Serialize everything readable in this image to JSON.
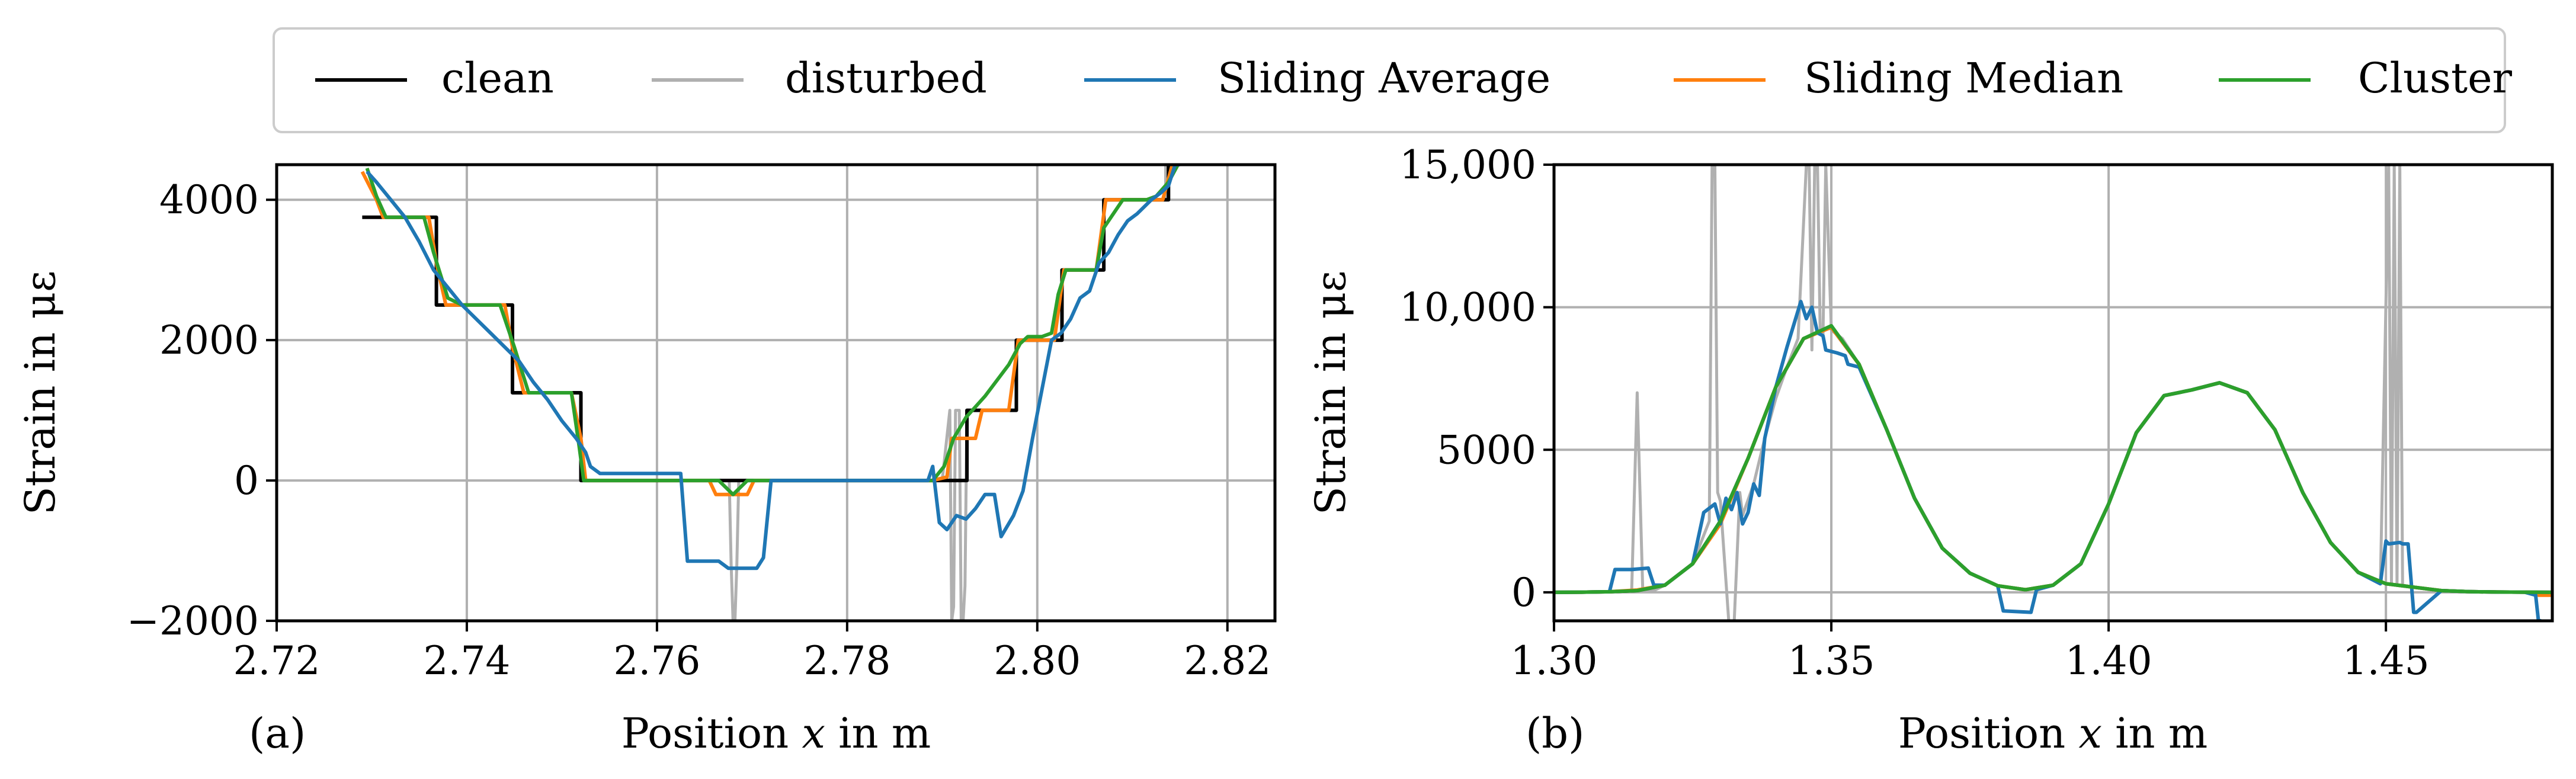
{
  "colors": {
    "clean": "#000000",
    "disturbed": "#b0b0b0",
    "sliding_average": "#1f77b4",
    "sliding_median": "#ff7f0e",
    "cluster": "#2ca02c",
    "grid": "#b0b0b0"
  },
  "chart_data": [
    {
      "type": "line",
      "panel_label": "(a)",
      "xlabel_pre": "Position ",
      "xlabel_var": "x",
      "xlabel_post": " in m",
      "ylabel": "Strain in με",
      "xlim": [
        2.72,
        2.825
      ],
      "ylim": [
        -2000,
        4500
      ],
      "xticks": [
        2.72,
        2.74,
        2.76,
        2.78,
        2.8,
        2.82
      ],
      "xtick_labels": [
        "2.72",
        "2.74",
        "2.76",
        "2.78",
        "2.80",
        "2.82"
      ],
      "yticks": [
        -2000,
        0,
        2000,
        4000
      ],
      "ytick_labels": [
        "−2000",
        "0",
        "2000",
        "4000"
      ],
      "grid": true,
      "series": [
        {
          "name": "disturbed",
          "x": [
            2.729,
            2.7368,
            2.7368,
            2.7448,
            2.7448,
            2.752,
            2.752,
            2.7676,
            2.7678,
            2.768,
            2.7682,
            2.7684,
            2.7686,
            2.79,
            2.7908,
            2.791,
            2.7912,
            2.7914,
            2.7918,
            2.792,
            2.7922,
            2.7924,
            2.7926,
            2.7926,
            2.7978,
            2.7978,
            2.8026,
            2.8026,
            2.807,
            2.807,
            2.8112,
            2.8112,
            2.8135,
            2.8135,
            2.8155
          ],
          "y": [
            3750,
            3750,
            2500,
            2500,
            1250,
            1250,
            0,
            0,
            -1200,
            -2000,
            -2000,
            -1200,
            0,
            0,
            1000,
            -2000,
            -1800,
            1000,
            1000,
            -2000,
            -2000,
            -1500,
            1000,
            1000,
            1000,
            2000,
            2000,
            3000,
            3000,
            4000,
            4000,
            4000,
            4000,
            4500,
            4500
          ]
        },
        {
          "name": "clean",
          "x": [
            2.729,
            2.7368,
            2.7368,
            2.7448,
            2.7448,
            2.752,
            2.752,
            2.789,
            2.789,
            2.7926,
            2.7926,
            2.7978,
            2.7978,
            2.8026,
            2.8026,
            2.807,
            2.807,
            2.8138,
            2.8138,
            2.815
          ],
          "y": [
            3750,
            3750,
            2500,
            2500,
            1250,
            1250,
            0,
            0,
            0,
            0,
            1000,
            1000,
            2000,
            2000,
            3000,
            3000,
            4000,
            4000,
            4500,
            4500
          ]
        },
        {
          "name": "Sliding Median",
          "x": [
            2.729,
            2.7305,
            2.7312,
            2.736,
            2.7368,
            2.7378,
            2.744,
            2.7448,
            2.746,
            2.751,
            2.752,
            2.7525,
            2.7655,
            2.7662,
            2.7695,
            2.7702,
            2.789,
            2.7905,
            2.791,
            2.7935,
            2.7942,
            2.797,
            2.798,
            2.8018,
            2.8028,
            2.8062,
            2.8072,
            2.8132,
            2.8142,
            2.815
          ],
          "y": [
            4400,
            4000,
            3750,
            3750,
            3100,
            2500,
            2500,
            1900,
            1250,
            1250,
            600,
            0,
            0,
            -200,
            -200,
            0,
            0,
            50,
            600,
            600,
            1000,
            1000,
            2000,
            2000,
            3000,
            3000,
            4000,
            4000,
            4500,
            4500
          ]
        },
        {
          "name": "Cluster",
          "x": [
            2.7295,
            2.7305,
            2.7315,
            2.7355,
            2.7365,
            2.738,
            2.7395,
            2.7435,
            2.745,
            2.7465,
            2.751,
            2.7518,
            2.7523,
            2.7665,
            2.768,
            2.7695,
            2.789,
            2.7902,
            2.7912,
            2.7925,
            2.7945,
            2.797,
            2.7982,
            2.799,
            2.8005,
            2.8015,
            2.8022,
            2.803,
            2.805,
            2.8062,
            2.807,
            2.809,
            2.8115,
            2.8125,
            2.8138,
            2.8148,
            2.815
          ],
          "y": [
            4450,
            4050,
            3750,
            3750,
            3250,
            2600,
            2500,
            2500,
            1900,
            1250,
            1250,
            500,
            0,
            0,
            -200,
            0,
            0,
            200,
            600,
            900,
            1200,
            1650,
            1950,
            2050,
            2050,
            2100,
            2650,
            3000,
            3000,
            3000,
            3600,
            4000,
            4000,
            4050,
            4250,
            4500,
            4500
          ]
        },
        {
          "name": "Sliding Average",
          "x": [
            2.7295,
            2.7305,
            2.732,
            2.7335,
            2.735,
            2.7365,
            2.738,
            2.7395,
            2.741,
            2.7425,
            2.744,
            2.7455,
            2.747,
            2.7485,
            2.75,
            2.7515,
            2.7525,
            2.753,
            2.754,
            2.7625,
            2.7632,
            2.7665,
            2.7675,
            2.7685,
            2.7705,
            2.7712,
            2.772,
            2.7885,
            2.789,
            2.7897,
            2.7905,
            2.7915,
            2.7925,
            2.7935,
            2.7945,
            2.7955,
            2.7962,
            2.7975,
            2.7985,
            2.7995,
            2.8005,
            2.8015,
            2.8025,
            2.8035,
            2.8045,
            2.8055,
            2.8065,
            2.8075,
            2.8085,
            2.8095,
            2.8105,
            2.812,
            2.813,
            2.8138,
            2.8145,
            2.815
          ],
          "y": [
            4400,
            4250,
            4000,
            3750,
            3400,
            3000,
            2750,
            2500,
            2300,
            2100,
            1900,
            1700,
            1400,
            1150,
            850,
            600,
            400,
            200,
            100,
            100,
            -1150,
            -1150,
            -1250,
            -1250,
            -1250,
            -1100,
            0,
            0,
            200,
            -600,
            -700,
            -500,
            -550,
            -400,
            -200,
            -200,
            -800,
            -500,
            -150,
            600,
            1300,
            2000,
            2100,
            2300,
            2600,
            2700,
            3100,
            3250,
            3500,
            3700,
            3800,
            4000,
            4100,
            4200,
            4500,
            4500
          ]
        }
      ]
    },
    {
      "type": "line",
      "panel_label": "(b)",
      "xlabel_pre": "Position ",
      "xlabel_var": "x",
      "xlabel_post": " in m",
      "ylabel": "Strain in με",
      "xlim": [
        1.3,
        1.48
      ],
      "ylim": [
        -1000,
        15000
      ],
      "xticks": [
        1.3,
        1.35,
        1.4,
        1.45
      ],
      "xtick_labels": [
        "1.30",
        "1.35",
        "1.40",
        "1.45"
      ],
      "yticks": [
        0,
        5000,
        10000,
        15000
      ],
      "ytick_labels": [
        "0",
        "5000",
        "10,000",
        "15,000"
      ],
      "grid": true,
      "series": [
        {
          "name": "disturbed",
          "x": [
            1.3,
            1.312,
            1.314,
            1.315,
            1.316,
            1.318,
            1.32,
            1.325,
            1.328,
            1.3285,
            1.329,
            1.3295,
            1.33,
            1.3315,
            1.3325,
            1.3335,
            1.334,
            1.336,
            1.338,
            1.34,
            1.342,
            1.344,
            1.3455,
            1.346,
            1.3465,
            1.347,
            1.3475,
            1.348,
            1.3485,
            1.349,
            1.35,
            1.352,
            1.355,
            1.36,
            1.365,
            1.37,
            1.375,
            1.38,
            1.385,
            1.39,
            1.395,
            1.4,
            1.405,
            1.41,
            1.415,
            1.42,
            1.425,
            1.43,
            1.435,
            1.44,
            1.445,
            1.449,
            1.4505,
            1.451,
            1.4515,
            1.452,
            1.4525,
            1.453,
            1.455,
            1.46,
            1.465,
            1.47,
            1.475,
            1.48
          ],
          "y": [
            0,
            20,
            60,
            7000,
            60,
            60,
            250,
            1000,
            2500,
            15000,
            15000,
            3500,
            3200,
            -1000,
            -1000,
            3500,
            2700,
            3800,
            5400,
            6800,
            7900,
            8900,
            15000,
            15000,
            8500,
            15000,
            15000,
            9100,
            9000,
            15000,
            9200,
            8900,
            8000,
            5700,
            3300,
            1550,
            670,
            230,
            90,
            250,
            1000,
            3100,
            5600,
            6900,
            7100,
            7350,
            7000,
            5700,
            3500,
            1750,
            700,
            300,
            15000,
            300,
            15000,
            300,
            15000,
            250,
            180,
            60,
            25,
            10,
            5,
            0
          ]
        },
        {
          "name": "clean",
          "x": [
            1.3,
            1.305,
            1.31,
            1.315,
            1.32,
            1.325,
            1.33,
            1.335,
            1.34,
            1.345,
            1.35,
            1.355,
            1.36,
            1.365,
            1.37,
            1.375,
            1.38,
            1.385,
            1.39,
            1.395,
            1.4,
            1.405,
            1.41,
            1.415,
            1.42,
            1.425,
            1.43,
            1.435,
            1.44,
            1.445,
            1.45,
            1.455,
            1.46,
            1.465,
            1.47,
            1.475,
            1.48
          ],
          "y": [
            0,
            5,
            20,
            60,
            250,
            1000,
            2500,
            4700,
            7200,
            8900,
            9300,
            8000,
            5700,
            3300,
            1550,
            670,
            230,
            90,
            250,
            1000,
            3100,
            5600,
            6900,
            7100,
            7350,
            7000,
            5700,
            3500,
            1750,
            700,
            300,
            180,
            60,
            25,
            10,
            5,
            0
          ]
        },
        {
          "name": "Sliding Median",
          "x": [
            1.3,
            1.305,
            1.31,
            1.315,
            1.32,
            1.325,
            1.33,
            1.335,
            1.34,
            1.345,
            1.35,
            1.355,
            1.36,
            1.365,
            1.37,
            1.375,
            1.38,
            1.385,
            1.39,
            1.395,
            1.4,
            1.405,
            1.41,
            1.415,
            1.42,
            1.425,
            1.43,
            1.435,
            1.44,
            1.445,
            1.45,
            1.455,
            1.46,
            1.465,
            1.47,
            1.475,
            1.4775,
            1.48
          ],
          "y": [
            0,
            5,
            20,
            80,
            250,
            1000,
            2400,
            4700,
            7200,
            8900,
            9300,
            8000,
            5700,
            3300,
            1550,
            670,
            230,
            90,
            250,
            1000,
            3100,
            5600,
            6900,
            7100,
            7350,
            7000,
            5700,
            3500,
            1750,
            700,
            300,
            180,
            60,
            25,
            10,
            5,
            -100,
            -100
          ]
        },
        {
          "name": "Sliding Average",
          "x": [
            1.3,
            1.305,
            1.31,
            1.311,
            1.314,
            1.317,
            1.318,
            1.32,
            1.325,
            1.327,
            1.329,
            1.33,
            1.331,
            1.332,
            1.333,
            1.334,
            1.335,
            1.336,
            1.337,
            1.338,
            1.34,
            1.342,
            1.3445,
            1.3455,
            1.3465,
            1.3475,
            1.3485,
            1.349,
            1.351,
            1.3525,
            1.353,
            1.355,
            1.36,
            1.365,
            1.37,
            1.375,
            1.38,
            1.381,
            1.386,
            1.387,
            1.39,
            1.395,
            1.4,
            1.405,
            1.41,
            1.415,
            1.42,
            1.425,
            1.43,
            1.435,
            1.44,
            1.445,
            1.449,
            1.45,
            1.4505,
            1.4525,
            1.453,
            1.454,
            1.455,
            1.4555,
            1.46,
            1.465,
            1.47,
            1.475,
            1.477,
            1.4775,
            1.478
          ],
          "y": [
            0,
            5,
            20,
            800,
            800,
            850,
            250,
            250,
            1000,
            2800,
            3100,
            2400,
            3300,
            2900,
            3500,
            2400,
            2800,
            3800,
            3400,
            5400,
            7200,
            8600,
            10200,
            9600,
            10000,
            9100,
            9000,
            8500,
            8400,
            8300,
            8000,
            7900,
            5700,
            3300,
            1550,
            670,
            230,
            -650,
            -700,
            90,
            250,
            1000,
            3100,
            5600,
            6900,
            7100,
            7350,
            7000,
            5700,
            3500,
            1750,
            700,
            300,
            1800,
            1700,
            1750,
            1700,
            1700,
            -700,
            -700,
            60,
            25,
            10,
            5,
            -100,
            -1000,
            -1000
          ]
        },
        {
          "name": "Cluster",
          "x": [
            1.3,
            1.305,
            1.31,
            1.315,
            1.32,
            1.325,
            1.33,
            1.335,
            1.34,
            1.345,
            1.35,
            1.355,
            1.36,
            1.365,
            1.37,
            1.375,
            1.38,
            1.385,
            1.39,
            1.395,
            1.4,
            1.405,
            1.41,
            1.415,
            1.42,
            1.425,
            1.43,
            1.435,
            1.44,
            1.445,
            1.45,
            1.455,
            1.46,
            1.465,
            1.47,
            1.475,
            1.48
          ],
          "y": [
            0,
            5,
            20,
            60,
            250,
            1000,
            2500,
            4700,
            7200,
            8900,
            9350,
            8000,
            5700,
            3300,
            1550,
            670,
            230,
            90,
            250,
            1000,
            3100,
            5600,
            6900,
            7100,
            7350,
            7000,
            5700,
            3500,
            1750,
            700,
            300,
            180,
            60,
            25,
            10,
            5,
            0
          ]
        }
      ]
    }
  ],
  "legend": {
    "placement": "top",
    "entries": [
      {
        "key": "clean",
        "label": "clean"
      },
      {
        "key": "disturbed",
        "label": "disturbed"
      },
      {
        "key": "sliding_average",
        "label": "Sliding Average"
      },
      {
        "key": "sliding_median",
        "label": "Sliding Median"
      },
      {
        "key": "cluster",
        "label": "Cluster"
      }
    ]
  }
}
